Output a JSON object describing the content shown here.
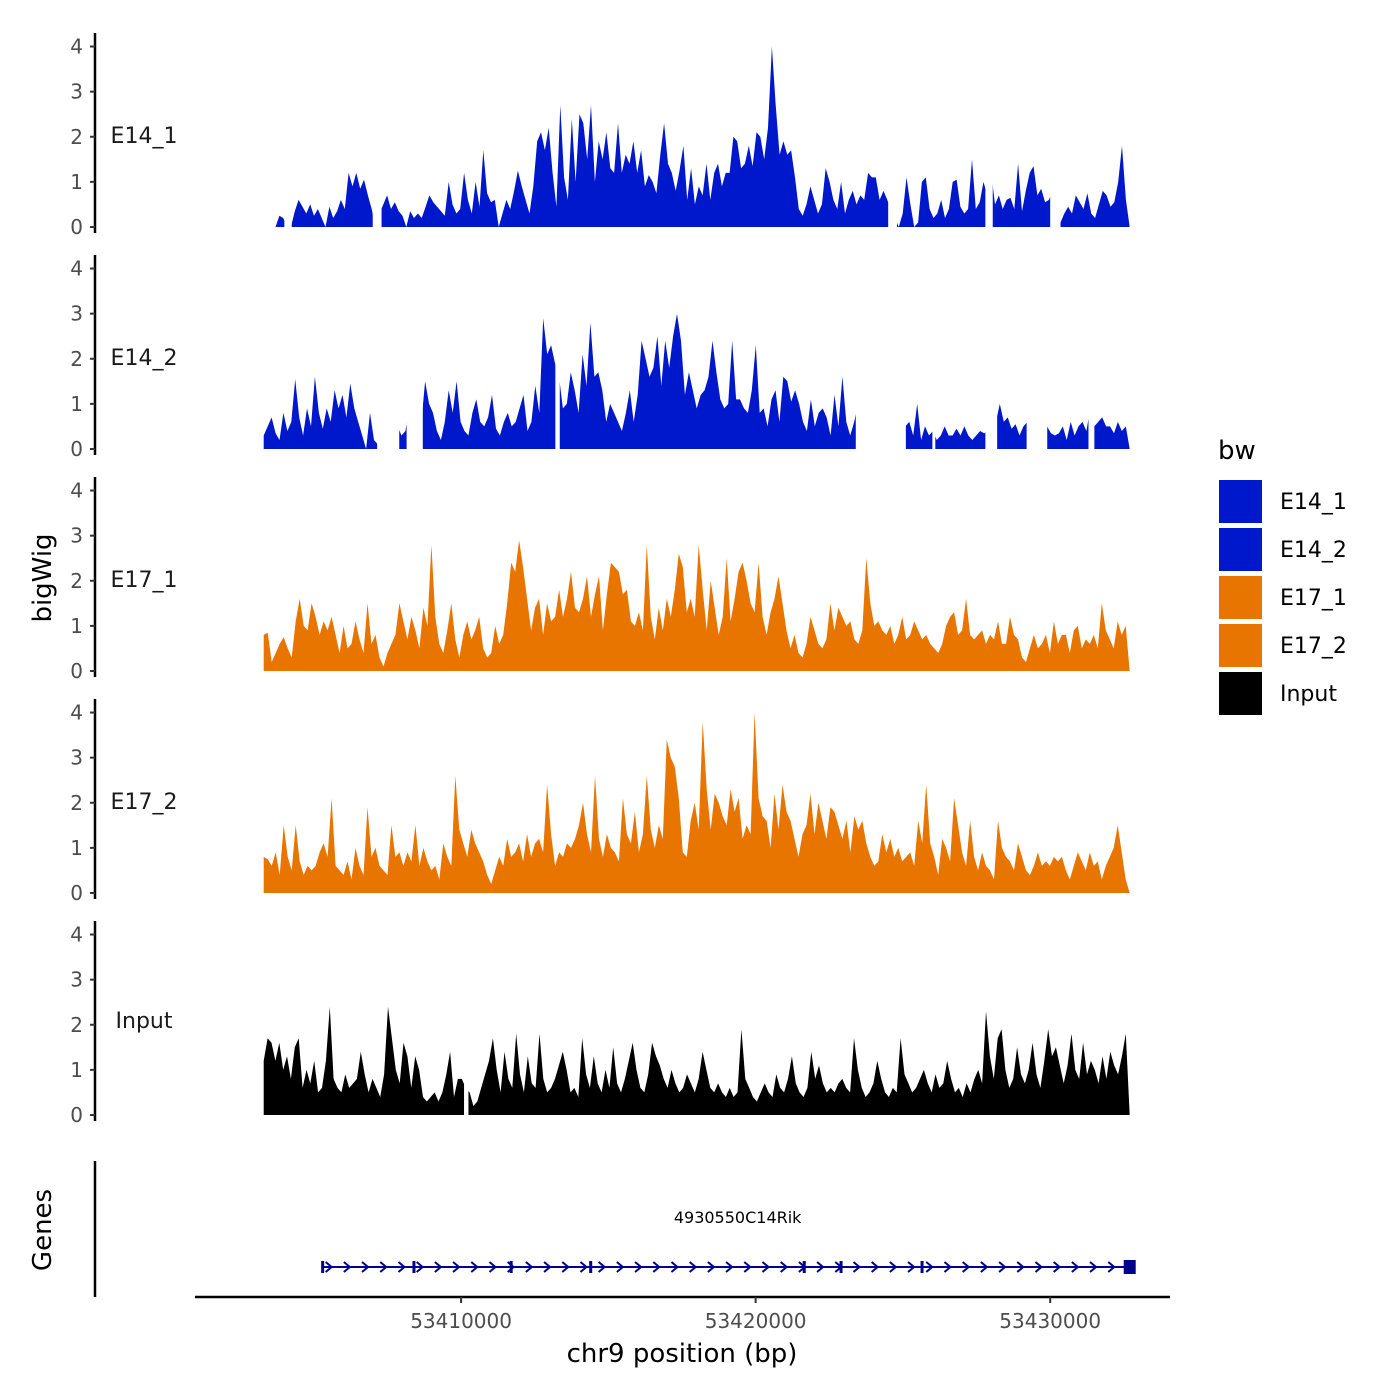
{
  "chart_data": {
    "type": "area",
    "title": "",
    "xlabel": "chr9 position (bp)",
    "ylabel": "bigWig",
    "genes_label": "Genes",
    "xlim": [
      53401000,
      53434000
    ],
    "x_ticks": [
      53410000,
      53420000,
      53430000
    ],
    "x_tick_labels": [
      "53410000",
      "53420000",
      "53430000"
    ],
    "ylim": [
      0,
      4.3
    ],
    "y_ticks": [
      0,
      1,
      2,
      3,
      4
    ],
    "y_tick_labels": [
      "0",
      "1",
      "2",
      "3",
      "4"
    ],
    "legend": {
      "title": "bw",
      "position": "right"
    },
    "tracks": [
      {
        "name": "E14_1",
        "color": "#0018CC",
        "x_start": 53403700,
        "x_end": 53432700,
        "values": [
          0.0,
          0.25,
          0.2,
          0.0,
          0.0,
          0.35,
          0.6,
          0.45,
          0.3,
          0.5,
          0.25,
          0.4,
          0.2,
          0.0,
          0.45,
          0.2,
          0.35,
          0.6,
          0.4,
          1.2,
          0.9,
          1.2,
          0.85,
          1.05,
          0.7,
          0.4,
          0.0,
          0.3,
          0.5,
          0.7,
          0.4,
          0.55,
          0.35,
          0.25,
          0.0,
          0.35,
          0.2,
          0.3,
          0.2,
          0.45,
          0.7,
          0.55,
          0.45,
          0.35,
          0.25,
          1.0,
          0.5,
          0.3,
          0.4,
          1.2,
          0.6,
          0.3,
          1.0,
          0.45,
          1.7,
          0.75,
          0.55,
          0.6,
          0.0,
          0.3,
          0.6,
          0.4,
          0.8,
          1.25,
          0.9,
          0.6,
          0.3,
          0.9,
          1.9,
          2.1,
          1.7,
          2.2,
          1.2,
          0.45,
          2.7,
          1.1,
          0.6,
          2.4,
          1.0,
          2.5,
          2.3,
          1.5,
          2.7,
          1.0,
          1.9,
          1.5,
          2.1,
          1.3,
          1.2,
          2.3,
          1.2,
          1.6,
          1.4,
          1.9,
          1.2,
          1.7,
          0.9,
          1.15,
          1.0,
          0.75,
          1.6,
          2.3,
          1.4,
          1.2,
          0.8,
          1.25,
          1.8,
          0.6,
          1.3,
          0.5,
          0.9,
          0.7,
          1.4,
          0.6,
          1.2,
          1.4,
          0.9,
          1.2,
          1.2,
          2.0,
          1.9,
          1.3,
          1.4,
          1.8,
          1.35,
          2.1,
          2.0,
          1.5,
          2.2,
          4.0,
          2.7,
          1.6,
          1.9,
          1.6,
          1.7,
          1.1,
          0.4,
          0.25,
          0.5,
          0.9,
          0.6,
          0.3,
          0.5,
          1.3,
          1.0,
          0.6,
          0.4,
          1.0,
          0.3,
          0.6,
          0.8,
          0.5,
          0.7,
          0.6,
          1.2,
          1.1,
          1.1,
          0.6,
          0.8,
          0.6,
          0.35,
          0.2,
          0.0,
          0.3,
          1.1,
          0.5,
          0.0,
          0.1,
          1.0,
          1.1,
          0.4,
          0.2,
          0.3,
          0.6,
          0.2,
          0.4,
          1.0,
          1.05,
          0.45,
          0.3,
          0.4,
          1.5,
          0.4,
          0.55,
          1.0,
          0.7,
          1.2,
          0.5,
          0.7,
          0.4,
          0.6,
          0.65,
          0.4,
          1.4,
          0.35,
          0.8,
          1.2,
          1.35,
          0.7,
          0.85,
          0.55,
          0.6,
          0.8,
          0.4,
          0.1,
          0.3,
          0.45,
          0.3,
          0.7,
          0.55,
          0.4,
          0.75,
          0.3,
          0.2,
          0.5,
          0.8,
          0.7,
          0.45,
          0.55,
          1.0,
          1.8,
          0.6,
          0.0
        ],
        "gaps": [
          [
            53404000,
            53404250
          ],
          [
            53407000,
            53407300
          ],
          [
            53424500,
            53424800
          ],
          [
            53427800,
            53428050
          ],
          [
            53430000,
            53430350
          ]
        ]
      },
      {
        "name": "E14_2",
        "color": "#0018CC",
        "x_start": 53403300,
        "x_end": 53432700,
        "values": [
          0.3,
          0.5,
          0.7,
          0.35,
          0.2,
          0.8,
          0.4,
          0.6,
          1.55,
          0.7,
          0.3,
          0.9,
          0.5,
          1.6,
          0.8,
          0.45,
          0.9,
          0.6,
          1.3,
          0.9,
          1.2,
          0.7,
          1.45,
          0.9,
          0.6,
          0.3,
          0.0,
          0.8,
          0.2,
          0.1,
          0.0,
          0.0,
          0.0,
          0.2,
          0.5,
          0.3,
          0.4,
          0.9,
          0.7,
          1.2,
          0.55,
          1.5,
          1.0,
          0.8,
          0.4,
          0.2,
          0.6,
          1.3,
          0.8,
          1.5,
          0.6,
          0.4,
          0.3,
          0.8,
          1.1,
          0.6,
          0.5,
          0.7,
          1.2,
          0.45,
          0.3,
          0.6,
          0.8,
          0.5,
          0.6,
          0.9,
          1.2,
          0.4,
          0.6,
          1.4,
          0.8,
          2.9,
          2.1,
          2.3,
          1.9,
          1.6,
          0.9,
          1.0,
          1.7,
          1.3,
          0.8,
          2.1,
          1.4,
          2.8,
          1.6,
          1.7,
          1.3,
          0.6,
          1.0,
          0.8,
          0.6,
          0.4,
          0.8,
          1.3,
          0.6,
          1.2,
          2.4,
          2.0,
          1.6,
          1.8,
          2.5,
          1.4,
          2.4,
          1.8,
          2.5,
          3.0,
          2.4,
          1.2,
          1.7,
          1.3,
          0.9,
          1.2,
          1.3,
          1.6,
          2.4,
          1.7,
          1.1,
          0.9,
          1.0,
          2.4,
          1.1,
          1.1,
          0.9,
          0.8,
          1.3,
          2.3,
          0.8,
          0.9,
          0.5,
          1.1,
          1.3,
          0.6,
          1.6,
          1.5,
          1.05,
          1.3,
          1.0,
          0.6,
          0.4,
          1.1,
          0.5,
          0.8,
          0.9,
          0.7,
          0.3,
          1.2,
          0.5,
          1.6,
          0.6,
          0.3,
          0.6,
          1.0,
          0.45,
          0.3,
          0.4,
          0.3,
          1.6,
          1.1,
          0.7,
          0.5,
          0.3,
          0.5,
          0.5,
          0.5,
          0.6,
          0.3,
          1.0,
          0.2,
          0.5,
          0.3,
          0.4,
          0.2,
          0.3,
          0.5,
          0.3,
          0.3,
          0.45,
          0.3,
          0.5,
          0.3,
          0.2,
          0.3,
          0.4,
          0.35,
          0.4,
          0.5,
          0.6,
          1.0,
          0.6,
          0.7,
          0.45,
          0.55,
          0.3,
          0.5,
          0.6,
          0.4,
          0.8,
          0.5,
          1.1,
          0.5,
          0.35,
          0.3,
          0.35,
          0.5,
          0.2,
          0.6,
          0.3,
          0.5,
          0.6,
          0.4,
          0.9,
          0.5,
          0.6,
          0.7,
          0.5,
          0.5,
          0.35,
          0.6,
          0.4,
          0.5,
          0.0
        ],
        "gaps": [
          [
            53407150,
            53407900
          ],
          [
            53408150,
            53408700
          ],
          [
            53413200,
            53413350
          ],
          [
            53423400,
            53425100
          ],
          [
            53426000,
            53426100
          ],
          [
            53427800,
            53428200
          ],
          [
            53429200,
            53429900
          ],
          [
            53431300,
            53431500
          ]
        ]
      },
      {
        "name": "E17_1",
        "color": "#E87500",
        "x_start": 53403300,
        "x_end": 53432700,
        "values": [
          0.8,
          0.85,
          0.2,
          0.4,
          0.6,
          0.75,
          0.5,
          0.3,
          1.1,
          1.6,
          1.0,
          0.9,
          1.5,
          1.2,
          0.8,
          1.1,
          0.9,
          1.2,
          0.8,
          0.4,
          1.0,
          0.5,
          0.6,
          1.1,
          0.7,
          0.4,
          1.5,
          0.6,
          0.8,
          0.3,
          0.1,
          0.4,
          0.6,
          0.8,
          1.5,
          1.1,
          0.7,
          1.2,
          0.9,
          0.5,
          1.4,
          1.0,
          2.8,
          1.2,
          0.6,
          0.4,
          0.9,
          1.5,
          0.7,
          0.3,
          0.8,
          1.1,
          0.7,
          0.9,
          1.2,
          0.5,
          0.3,
          0.4,
          1.0,
          0.6,
          0.8,
          1.5,
          2.4,
          2.2,
          2.9,
          2.3,
          1.6,
          0.9,
          1.4,
          1.6,
          0.8,
          1.5,
          1.1,
          1.2,
          1.8,
          1.2,
          1.6,
          2.2,
          1.4,
          1.3,
          1.6,
          2.1,
          1.2,
          1.7,
          2.1,
          0.9,
          1.7,
          2.4,
          2.3,
          2.2,
          1.7,
          1.8,
          1.1,
          1.0,
          1.3,
          0.9,
          2.8,
          1.2,
          0.7,
          1.4,
          0.9,
          1.6,
          1.2,
          1.8,
          2.6,
          2.3,
          1.3,
          1.6,
          1.2,
          2.8,
          1.8,
          0.9,
          2.0,
          1.4,
          0.8,
          1.2,
          2.5,
          1.1,
          1.6,
          2.2,
          2.4,
          2.0,
          1.5,
          1.3,
          2.4,
          1.2,
          0.8,
          1.3,
          1.6,
          2.1,
          1.5,
          0.9,
          0.5,
          0.8,
          0.4,
          0.3,
          0.6,
          1.2,
          0.9,
          0.6,
          0.5,
          0.7,
          1.5,
          0.9,
          1.4,
          1.2,
          1.0,
          1.1,
          0.7,
          0.6,
          0.9,
          2.5,
          1.5,
          1.0,
          1.1,
          0.9,
          0.8,
          1.0,
          0.6,
          0.8,
          1.2,
          0.7,
          0.8,
          1.1,
          0.9,
          0.7,
          0.8,
          0.6,
          0.5,
          0.4,
          0.6,
          1.0,
          1.2,
          1.3,
          0.8,
          0.9,
          1.6,
          0.8,
          0.7,
          0.8,
          0.9,
          0.6,
          0.8,
          0.7,
          1.1,
          0.6,
          0.6,
          1.2,
          0.8,
          0.7,
          0.3,
          0.2,
          0.5,
          0.8,
          0.5,
          0.6,
          0.8,
          0.4,
          1.1,
          0.6,
          0.8,
          0.8,
          0.4,
          0.9,
          1.0,
          0.5,
          0.7,
          0.6,
          0.8,
          0.5,
          1.5,
          0.9,
          0.7,
          0.5,
          1.1,
          0.8,
          1.0,
          0.0
        ],
        "gaps": []
      },
      {
        "name": "E17_2",
        "color": "#E87500",
        "x_start": 53403300,
        "x_end": 53432700,
        "values": [
          0.8,
          0.75,
          0.6,
          0.9,
          0.4,
          1.5,
          0.8,
          0.5,
          1.5,
          0.7,
          0.4,
          0.6,
          0.5,
          0.6,
          0.9,
          1.1,
          0.8,
          2.1,
          0.6,
          0.5,
          0.4,
          0.7,
          0.3,
          1.0,
          0.6,
          0.4,
          1.9,
          0.8,
          1.0,
          0.6,
          0.5,
          0.4,
          1.5,
          0.8,
          0.9,
          0.6,
          0.9,
          0.7,
          1.5,
          0.6,
          1.0,
          0.7,
          0.5,
          0.6,
          0.3,
          1.1,
          0.8,
          0.6,
          2.6,
          1.4,
          1.1,
          0.8,
          1.4,
          1.1,
          0.9,
          0.7,
          0.4,
          0.2,
          0.5,
          0.8,
          0.6,
          1.2,
          0.8,
          0.9,
          1.1,
          0.7,
          1.3,
          0.8,
          1.1,
          1.2,
          0.9,
          2.4,
          1.3,
          0.6,
          0.9,
          0.8,
          1.1,
          1.0,
          1.2,
          1.5,
          2.0,
          1.3,
          0.9,
          2.6,
          1.2,
          0.8,
          1.3,
          1.0,
          0.9,
          0.7,
          2.1,
          1.3,
          1.1,
          1.8,
          0.9,
          1.3,
          2.6,
          1.4,
          1.0,
          1.5,
          1.2,
          3.4,
          3.0,
          2.8,
          2.1,
          0.9,
          0.8,
          1.6,
          2.0,
          1.4,
          3.8,
          2.3,
          1.4,
          2.2,
          2.0,
          1.7,
          1.5,
          2.3,
          1.8,
          2.1,
          1.2,
          1.5,
          1.3,
          4.0,
          2.1,
          1.7,
          1.6,
          1.0,
          2.2,
          1.4,
          2.4,
          1.8,
          1.6,
          1.2,
          0.8,
          1.3,
          1.5,
          2.2,
          1.3,
          2.0,
          1.6,
          1.2,
          1.9,
          1.8,
          1.5,
          1.2,
          1.6,
          0.9,
          1.7,
          1.4,
          1.6,
          1.1,
          0.8,
          0.6,
          0.7,
          1.3,
          0.9,
          1.2,
          0.8,
          1.0,
          0.7,
          0.8,
          0.9,
          0.6,
          1.6,
          1.1,
          2.4,
          1.1,
          0.8,
          0.4,
          1.2,
          1.0,
          0.7,
          2.1,
          1.5,
          0.9,
          0.6,
          1.6,
          0.8,
          0.5,
          0.9,
          0.6,
          0.5,
          0.3,
          1.6,
          1.0,
          0.8,
          0.7,
          0.5,
          1.1,
          0.8,
          0.5,
          0.4,
          0.6,
          0.9,
          0.6,
          0.7,
          0.6,
          0.8,
          0.7,
          0.8,
          0.5,
          0.3,
          0.6,
          0.9,
          0.7,
          0.5,
          0.9,
          0.6,
          0.7,
          0.3,
          0.6,
          0.8,
          1.0,
          1.5,
          0.9,
          0.3,
          0.0
        ],
        "gaps": []
      },
      {
        "name": "Input",
        "color": "#000000",
        "x_start": 53403300,
        "x_end": 53432700,
        "values": [
          1.2,
          1.7,
          1.6,
          1.2,
          1.6,
          1.0,
          1.3,
          0.8,
          1.5,
          1.7,
          0.6,
          1.0,
          0.7,
          1.2,
          0.5,
          0.6,
          1.2,
          2.4,
          0.8,
          0.6,
          0.5,
          0.9,
          0.6,
          0.7,
          0.8,
          1.4,
          0.9,
          0.5,
          0.8,
          0.6,
          0.4,
          0.9,
          2.4,
          1.7,
          1.0,
          0.7,
          1.6,
          1.3,
          0.6,
          1.3,
          1.0,
          0.4,
          0.3,
          0.4,
          0.5,
          0.3,
          0.5,
          0.9,
          1.4,
          0.4,
          0.8,
          0.8,
          0.6,
          0.5,
          0.2,
          0.3,
          0.6,
          0.9,
          1.2,
          1.7,
          1.0,
          0.5,
          1.4,
          0.8,
          0.6,
          1.8,
          0.9,
          0.5,
          1.3,
          0.7,
          0.6,
          1.8,
          0.8,
          0.5,
          0.6,
          0.8,
          1.1,
          1.4,
          1.0,
          0.5,
          0.6,
          0.4,
          1.7,
          0.9,
          0.6,
          1.3,
          0.7,
          0.5,
          1.0,
          0.6,
          1.5,
          0.7,
          0.5,
          0.8,
          1.2,
          1.6,
          1.0,
          0.6,
          0.5,
          0.9,
          1.6,
          1.3,
          1.1,
          0.8,
          0.6,
          1.0,
          0.7,
          0.5,
          0.6,
          0.9,
          0.7,
          0.5,
          0.8,
          1.4,
          1.0,
          0.6,
          0.5,
          0.7,
          0.5,
          0.4,
          0.6,
          0.4,
          0.5,
          1.9,
          0.8,
          0.6,
          0.4,
          0.3,
          0.5,
          0.7,
          0.5,
          0.4,
          0.9,
          0.6,
          0.5,
          0.8,
          1.3,
          0.7,
          0.5,
          0.4,
          0.6,
          1.4,
          0.8,
          1.1,
          0.7,
          0.5,
          0.6,
          0.5,
          0.7,
          0.8,
          0.6,
          0.5,
          1.7,
          1.0,
          0.6,
          0.4,
          0.5,
          0.7,
          1.2,
          0.8,
          0.5,
          0.4,
          0.6,
          0.5,
          1.7,
          0.9,
          0.7,
          0.5,
          0.6,
          0.8,
          1.0,
          0.7,
          0.5,
          0.9,
          0.6,
          0.7,
          1.2,
          0.8,
          0.5,
          0.6,
          0.4,
          0.7,
          0.5,
          0.8,
          1.0,
          0.7,
          2.3,
          1.3,
          0.8,
          1.7,
          1.9,
          1.0,
          0.6,
          0.8,
          1.5,
          0.9,
          0.7,
          1.0,
          1.6,
          0.9,
          0.6,
          1.2,
          1.9,
          1.3,
          1.5,
          1.1,
          0.7,
          1.1,
          1.8,
          1.0,
          0.8,
          1.6,
          0.9,
          1.2,
          1.0,
          0.7,
          1.3,
          0.8,
          1.4,
          1.1,
          0.9,
          1.3,
          1.8,
          0.0
        ],
        "gaps": [
          [
            53410100,
            53410250
          ]
        ]
      }
    ],
    "gene": {
      "name": "4930550C14Rik",
      "start": 53405300,
      "end": 53432800,
      "strand": "+",
      "color": "#00008B",
      "exons": [
        53405300,
        53408400,
        53411700,
        53414400,
        53421650,
        53422900,
        53425650,
        53432700
      ]
    }
  }
}
